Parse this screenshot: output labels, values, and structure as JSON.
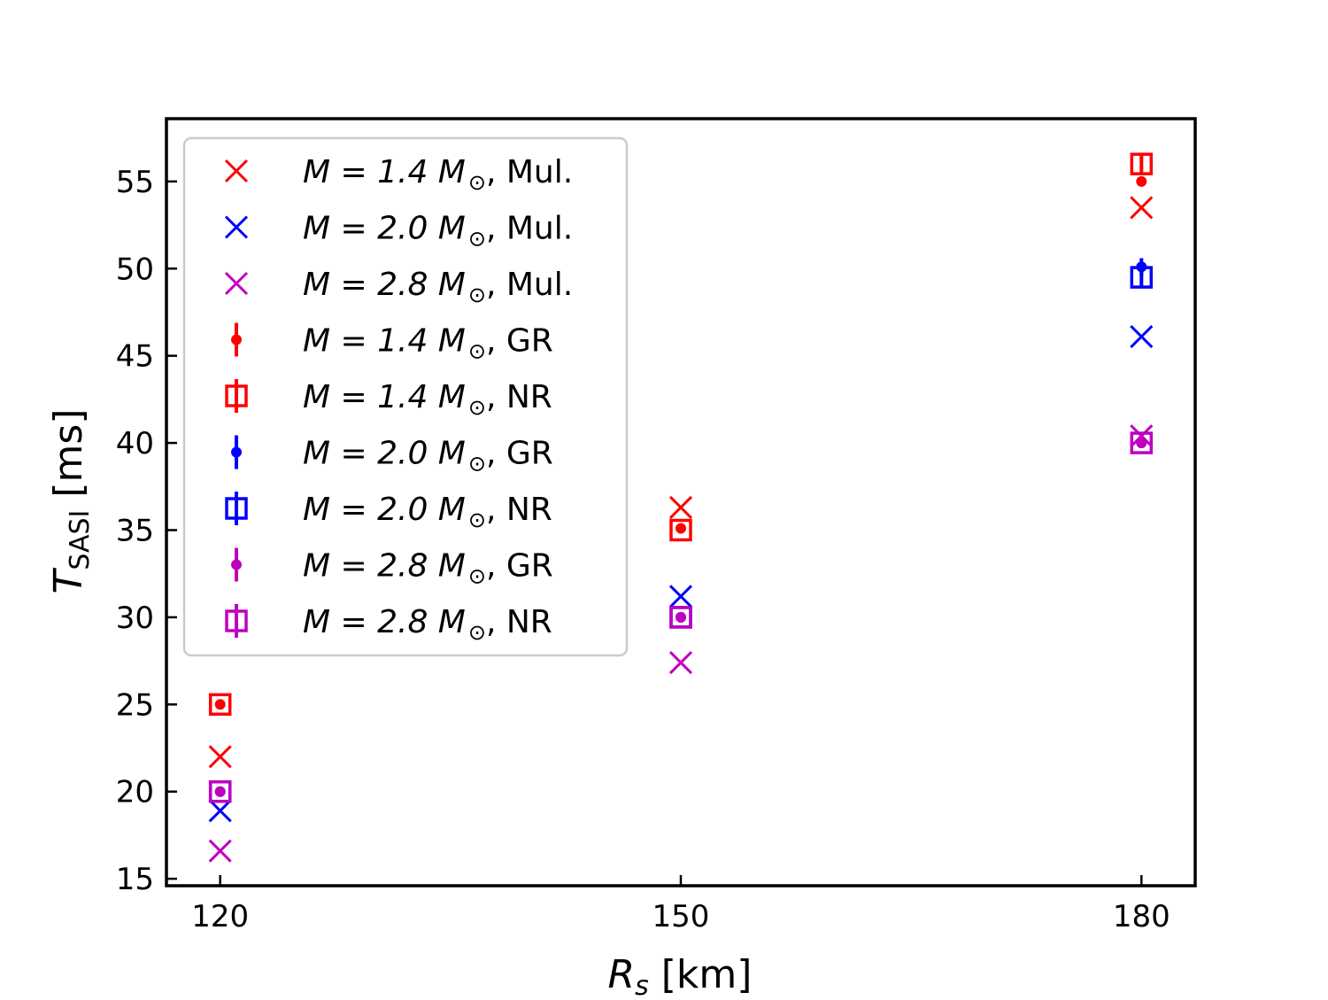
{
  "chart_data": {
    "type": "scatter",
    "xlabel": {
      "main": "R",
      "sub": "s",
      "unit": " [km]"
    },
    "ylabel": {
      "main": "T",
      "sub": "SASI",
      "unit": " [ms]"
    },
    "xlim": [
      116.5,
      183.5
    ],
    "ylim": [
      14.6,
      58.6
    ],
    "xticks": [
      120,
      150,
      180
    ],
    "yticks": [
      15,
      20,
      25,
      30,
      35,
      40,
      45,
      50,
      55
    ],
    "grid": false,
    "legend_position": "upper-left",
    "series": [
      {
        "name": {
          "pre": "M = 1.4 M",
          "post": ", Mul."
        },
        "color": "#ff0000",
        "marker": "x",
        "points": [
          {
            "x": 120,
            "y": 22.0
          },
          {
            "x": 150,
            "y": 36.3
          },
          {
            "x": 180,
            "y": 53.5
          }
        ]
      },
      {
        "name": {
          "pre": "M = 2.0 M",
          "post": ", Mul."
        },
        "color": "#0000ff",
        "marker": "x",
        "points": [
          {
            "x": 120,
            "y": 18.9
          },
          {
            "x": 150,
            "y": 31.2
          },
          {
            "x": 180,
            "y": 46.1
          }
        ]
      },
      {
        "name": {
          "pre": "M = 2.8 M",
          "post": ", Mul."
        },
        "color": "#bf00bf",
        "marker": "x",
        "points": [
          {
            "x": 120,
            "y": 16.6
          },
          {
            "x": 150,
            "y": 27.4
          },
          {
            "x": 180,
            "y": 40.4
          }
        ]
      },
      {
        "name": {
          "pre": "M = 1.4 M",
          "post": ", GR"
        },
        "color": "#ff0000",
        "marker": "dot",
        "points": [
          {
            "x": 120,
            "y": 25.0,
            "err": 0.1
          },
          {
            "x": 150,
            "y": 35.1,
            "err": 0.1
          },
          {
            "x": 180,
            "y": 55.0,
            "err": 0.2
          }
        ]
      },
      {
        "name": {
          "pre": "M = 1.4 M",
          "post": ", NR"
        },
        "color": "#ff0000",
        "marker": "square",
        "points": [
          {
            "x": 120,
            "y": 25.0,
            "err": 0.1
          },
          {
            "x": 150,
            "y": 35.0,
            "err": 0.2
          },
          {
            "x": 180,
            "y": 56.0,
            "err": 0.5
          }
        ]
      },
      {
        "name": {
          "pre": "M = 2.0 M",
          "post": ", GR"
        },
        "color": "#0000ff",
        "marker": "dot",
        "points": [
          {
            "x": 120,
            "y": 20.0,
            "err": 0.1
          },
          {
            "x": 150,
            "y": 30.0,
            "err": 0.1
          },
          {
            "x": 180,
            "y": 50.1,
            "err": 0.5
          }
        ]
      },
      {
        "name": {
          "pre": "M = 2.0 M",
          "post": ", NR"
        },
        "color": "#0000ff",
        "marker": "square",
        "points": [
          {
            "x": 120,
            "y": 20.0,
            "err": 0.1
          },
          {
            "x": 150,
            "y": 30.0,
            "err": 0.2
          },
          {
            "x": 180,
            "y": 49.5,
            "err": 0.5
          }
        ]
      },
      {
        "name": {
          "pre": "M = 2.8 M",
          "post": ", GR"
        },
        "color": "#bf00bf",
        "marker": "dot",
        "points": [
          {
            "x": 120,
            "y": 20.0,
            "err": 0.1
          },
          {
            "x": 150,
            "y": 30.0,
            "err": 0.2
          },
          {
            "x": 180,
            "y": 40.0,
            "err": 0.2
          }
        ]
      },
      {
        "name": {
          "pre": "M = 2.8 M",
          "post": ", NR"
        },
        "color": "#bf00bf",
        "marker": "square",
        "points": [
          {
            "x": 120,
            "y": 20.0,
            "err": 0.1
          },
          {
            "x": 150,
            "y": 30.0,
            "err": 0.3
          },
          {
            "x": 180,
            "y": 40.0,
            "err": 0.3
          }
        ]
      }
    ]
  }
}
